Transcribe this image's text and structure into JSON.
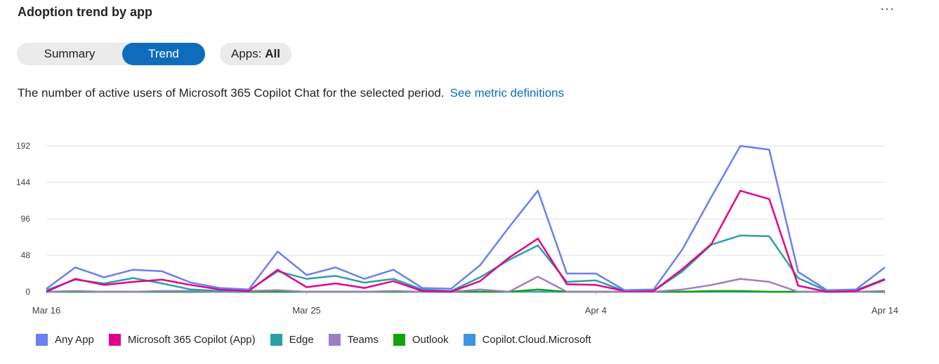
{
  "header": {
    "title": "Adoption trend by app",
    "more_label": "···"
  },
  "tabs": {
    "summary": "Summary",
    "trend": "Trend"
  },
  "apps_filter": {
    "label": "Apps:",
    "value": "All"
  },
  "description": {
    "text": "The number of active users of Microsoft 365 Copilot Chat for the selected period.",
    "link": "See metric definitions"
  },
  "chart_data": {
    "type": "line",
    "x_ticks": [
      "Mar 16",
      "Mar 25",
      "Apr 4",
      "Apr 14"
    ],
    "y_ticks": [
      0,
      48,
      96,
      144,
      192
    ],
    "ylim": [
      0,
      192
    ],
    "grid": true,
    "legend_position": "bottom-left",
    "x": [
      "Mar 16",
      "Mar 17",
      "Mar 18",
      "Mar 19",
      "Mar 20",
      "Mar 21",
      "Mar 22",
      "Mar 23",
      "Mar 24",
      "Mar 25",
      "Mar 26",
      "Mar 27",
      "Mar 28",
      "Mar 29",
      "Mar 30",
      "Mar 31",
      "Apr 1",
      "Apr 2",
      "Apr 3",
      "Apr 4",
      "Apr 5",
      "Apr 6",
      "Apr 7",
      "Apr 8",
      "Apr 9",
      "Apr 10",
      "Apr 11",
      "Apr 12",
      "Apr 13",
      "Apr 14"
    ],
    "series": [
      {
        "name": "Any App",
        "color": "#6b7ff0",
        "values": [
          4,
          32,
          19,
          29,
          27,
          12,
          5,
          3,
          53,
          22,
          32,
          17,
          29,
          5,
          4,
          35,
          85,
          133,
          24,
          24,
          2,
          3,
          56,
          125,
          192,
          187,
          26,
          2,
          3,
          32
        ]
      },
      {
        "name": "Microsoft 365 Copilot (App)",
        "color": "#e3008c",
        "values": [
          0,
          17,
          9,
          13,
          16,
          9,
          3,
          1,
          29,
          6,
          11,
          5,
          14,
          1,
          0,
          14,
          45,
          70,
          10,
          9,
          1,
          1,
          30,
          63,
          133,
          122,
          8,
          0,
          1,
          16
        ]
      },
      {
        "name": "Edge",
        "color": "#2aa0a4",
        "values": [
          2,
          16,
          11,
          18,
          11,
          3,
          1,
          2,
          27,
          17,
          21,
          12,
          17,
          3,
          1,
          19,
          42,
          61,
          13,
          15,
          1,
          1,
          27,
          62,
          74,
          73,
          18,
          1,
          2,
          17
        ]
      },
      {
        "name": "Teams",
        "color": "#9b7fc4",
        "values": [
          0,
          1,
          0,
          0,
          1,
          1,
          0,
          1,
          2,
          0,
          0,
          0,
          1,
          0,
          0,
          3,
          0,
          20,
          0,
          0,
          0,
          0,
          3,
          9,
          17,
          13,
          0,
          0,
          0,
          1
        ]
      },
      {
        "name": "Outlook",
        "color": "#13a10e",
        "values": [
          0,
          0,
          0,
          0,
          0,
          0,
          0,
          0,
          0,
          0,
          0,
          0,
          0,
          0,
          0,
          0,
          0,
          3,
          0,
          0,
          0,
          0,
          0,
          1,
          1,
          0,
          0,
          0,
          0,
          0
        ]
      },
      {
        "name": "Copilot.Cloud.Microsoft",
        "color": "#3b95e0",
        "values": [
          0,
          0,
          0,
          0,
          0,
          0,
          0,
          0,
          0,
          0,
          0,
          0,
          0,
          0,
          0,
          0,
          0,
          0,
          0,
          0,
          0,
          0,
          0,
          0,
          0,
          0,
          0,
          0,
          0,
          0
        ]
      }
    ]
  }
}
